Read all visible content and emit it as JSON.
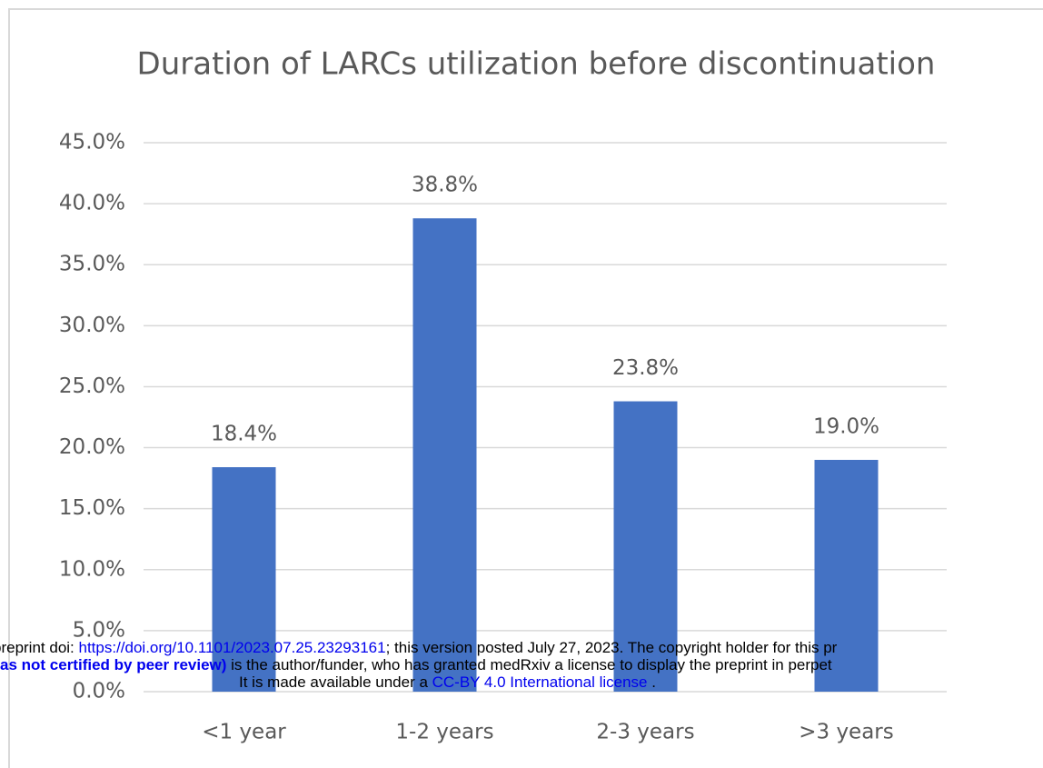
{
  "chart_data": {
    "type": "bar",
    "title": "Duration of LARCs utilization before discontinuation",
    "categories": [
      "<1 year",
      "1-2 years",
      "2-3 years",
      ">3 years"
    ],
    "values": [
      18.4,
      38.8,
      23.8,
      19.0
    ],
    "value_labels": [
      "18.4%",
      "38.8%",
      "23.8%",
      "19.0%"
    ],
    "color": "#4472c4",
    "ylim": [
      0,
      45
    ],
    "yticks": [
      {
        "value": 0,
        "label": "0.0%"
      },
      {
        "value": 5,
        "label": "5.0%"
      },
      {
        "value": 10,
        "label": "10.0%"
      },
      {
        "value": 15,
        "label": "15.0%"
      },
      {
        "value": 20,
        "label": "20.0%"
      },
      {
        "value": 25,
        "label": "25.0%"
      },
      {
        "value": 30,
        "label": "30.0%"
      },
      {
        "value": 35,
        "label": "35.0%"
      },
      {
        "value": 40,
        "label": "40.0%"
      },
      {
        "value": 45,
        "label": "45.0%"
      }
    ],
    "grid": true
  },
  "notice": {
    "line1": {
      "prefix": "preprint doi: ",
      "link": "https://doi.org/10.1101/2023.07.25.23293161",
      "suffix": "; this version posted July 27, 2023. The copyright holder for this pr"
    },
    "line2": {
      "bold": "as not certified by peer review)",
      "suffix": " is the author/funder, who has granted medRxiv a license to display the preprint in perpet"
    },
    "line3": {
      "prefix": "It is made available under a ",
      "link": "CC-BY 4.0 International license",
      "suffix": " ."
    }
  }
}
